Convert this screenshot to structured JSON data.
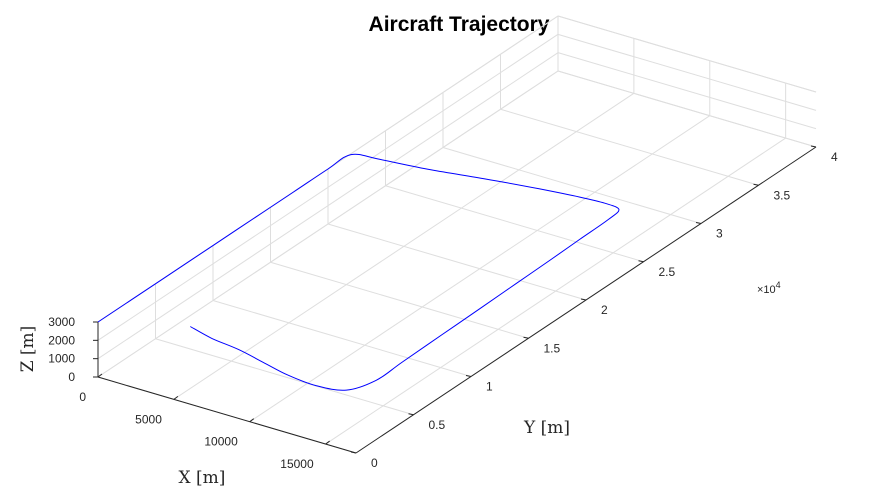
{
  "chart_data": {
    "type": "line3d",
    "title": "Aircraft Trajectory",
    "xlabel": "X [m]",
    "ylabel": "Y [m]",
    "zlabel": "Z [m]",
    "y_multiplier_label": "×10",
    "y_multiplier_exp": "4",
    "xlim": [
      0,
      17000
    ],
    "ylim": [
      0,
      40000
    ],
    "zlim": [
      0,
      3000
    ],
    "x_ticks": [
      0,
      5000,
      10000,
      15000
    ],
    "x_tick_labels": [
      "0",
      "5000",
      "10000",
      "15000"
    ],
    "y_ticks": [
      0,
      5000,
      10000,
      15000,
      20000,
      25000,
      30000,
      35000,
      40000
    ],
    "y_tick_labels": [
      "0",
      "0.5",
      "1",
      "1.5",
      "2",
      "2.5",
      "3",
      "3.5",
      "4"
    ],
    "z_ticks": [
      0,
      1000,
      2000,
      3000
    ],
    "z_tick_labels": [
      "0",
      "1000",
      "2000",
      "3000"
    ],
    "grid": true,
    "line_color": "#0000ff",
    "series": [
      {
        "x": [
          0,
          0,
          0,
          0,
          0,
          0,
          0,
          1500,
          4500,
          7500,
          10500,
          12800,
          14300,
          15300,
          15450,
          15450,
          15450,
          15450,
          15450,
          15450,
          15450,
          15450,
          14700,
          13000,
          11000,
          9000,
          7000,
          5000,
          3200
        ],
        "y": [
          0,
          3000,
          8000,
          12000,
          17000,
          20000,
          22000,
          22500,
          23000,
          23800,
          24500,
          25000,
          25200,
          25100,
          24000,
          21500,
          19000,
          16000,
          13000,
          9500,
          6000,
          3800,
          2200,
          1800,
          2000,
          2500,
          3000,
          3300,
          3800
        ],
        "z": [
          3000,
          3000,
          3000,
          3000,
          3000,
          3000,
          2950,
          2850,
          2800,
          2700,
          2600,
          2500,
          2450,
          2400,
          2350,
          2300,
          2250,
          2200,
          2150,
          2100,
          2050,
          2000,
          1950,
          1950,
          1950,
          1950,
          1950,
          1950,
          1950
        ]
      }
    ]
  }
}
